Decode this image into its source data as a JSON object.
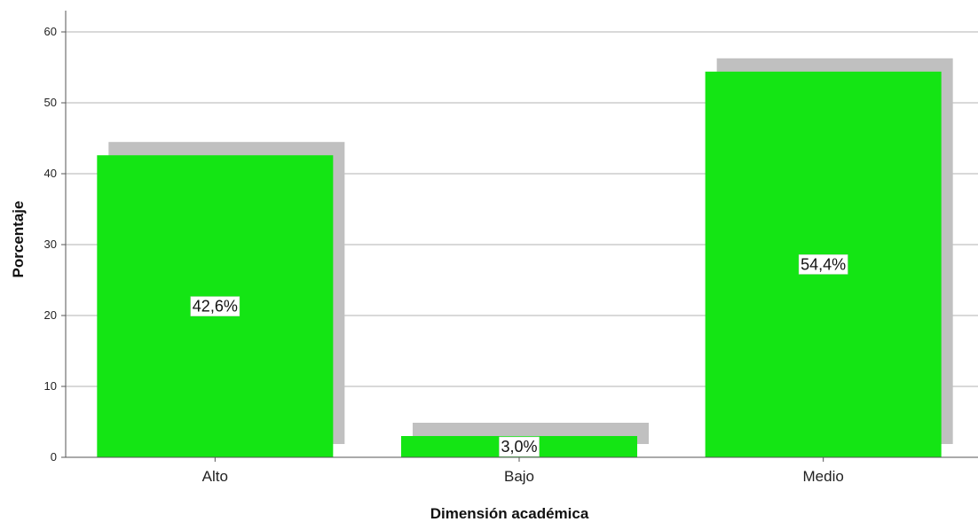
{
  "chart_data": {
    "type": "bar",
    "title": "",
    "xlabel": "Dimensión académica",
    "ylabel": "Porcentaje",
    "categories": [
      "Alto",
      "Bajo",
      "Medio"
    ],
    "values": [
      42.6,
      3.0,
      54.4
    ],
    "data_labels": [
      "42,6%",
      "3,0%",
      "54,4%"
    ],
    "ylim": [
      0,
      63
    ],
    "yticks": [
      0,
      10,
      20,
      30,
      40,
      50,
      60
    ],
    "grid": true,
    "legend": "none",
    "colors": {
      "bar": "#14e514",
      "shadow": "#c0c0c0",
      "grid": "#b3b3b3",
      "axis": "#555555"
    }
  }
}
